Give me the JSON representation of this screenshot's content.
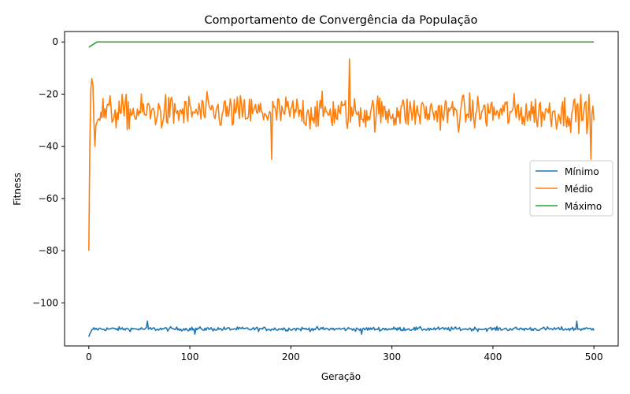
{
  "chart_data": {
    "type": "line",
    "title": "Comportamento de Convergência da População",
    "xlabel": "Geração",
    "ylabel": "Fitness",
    "xlim": [
      -24,
      524
    ],
    "ylim": [
      -116.5,
      4
    ],
    "x_ticks": [
      0,
      100,
      200,
      300,
      400,
      500
    ],
    "y_ticks": [
      0,
      -20,
      -40,
      -60,
      -80,
      -100
    ],
    "grid": false,
    "legend_position": "center-right",
    "generations": [
      0,
      500
    ],
    "series": [
      {
        "name": "Mínimo",
        "color": "#1f77b4",
        "start": -113,
        "level": -110,
        "amplitude": 1.3,
        "spikes": [
          -107,
          -112
        ],
        "x_range": [
          0,
          500
        ]
      },
      {
        "name": "Médio",
        "color": "#ff7f0e",
        "start": -80,
        "peak_early": -14,
        "level": -27,
        "amplitude": 8,
        "max_seen": -6.5,
        "min_seen": -45,
        "end": -30,
        "x_range": [
          0,
          500
        ]
      },
      {
        "name": "Máximo",
        "color": "#2ca02c",
        "start": -2,
        "converges_at": 8,
        "level": 0,
        "x_range": [
          0,
          500
        ]
      }
    ]
  }
}
